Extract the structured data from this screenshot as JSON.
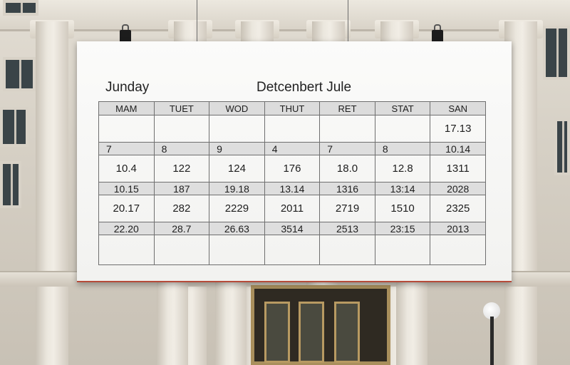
{
  "calendar": {
    "title_left": "Junday",
    "title_right": "Detcenbert Jule",
    "days": [
      "MAM",
      "TUET",
      "WOD",
      "THUT",
      "RET",
      "STAT",
      "SAN"
    ],
    "rows": [
      {
        "style": "tall",
        "cells": [
          "",
          "",
          "",
          "",
          "",
          "",
          "17.13"
        ]
      },
      {
        "style": "short-left",
        "cells": [
          "7",
          "8",
          "9",
          "4",
          "7",
          "8",
          "10.14"
        ]
      },
      {
        "style": "tall",
        "cells": [
          "10.4",
          "122",
          "124",
          "176",
          "18.0",
          "12.8",
          "1311"
        ]
      },
      {
        "style": "short",
        "cells": [
          "10.15",
          "187",
          "19.18",
          "13.14",
          "1316",
          "13:14",
          "2028"
        ]
      },
      {
        "style": "tall",
        "cells": [
          "20.17",
          "282",
          "2229",
          "2011",
          "2719",
          "1510",
          "2325"
        ]
      },
      {
        "style": "short",
        "cells": [
          "22.20",
          "28.7",
          "26.63",
          "3514",
          "2513",
          "23:15",
          "2013"
        ]
      },
      {
        "style": "empty",
        "cells": [
          "",
          "",
          "",
          "",
          "",
          "",
          ""
        ]
      }
    ]
  },
  "colors": {
    "board": "#f7f7f5",
    "grid_line": "#6f6f6f",
    "header_fill": "#dcdcdc",
    "stone": "#d6d0c5",
    "door_frame": "#a98f5c"
  }
}
